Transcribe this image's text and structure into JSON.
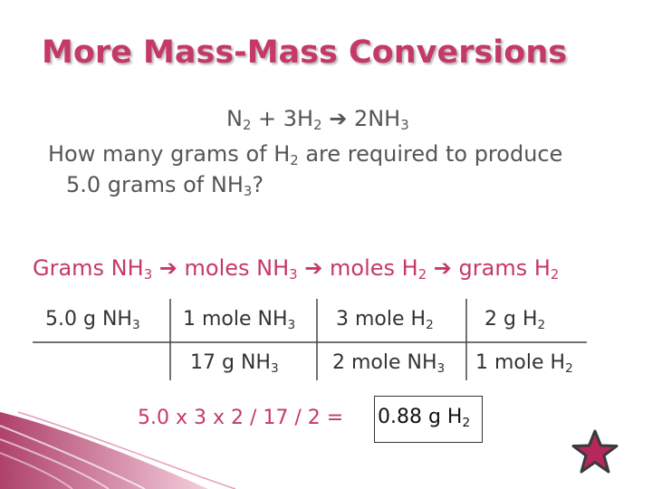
{
  "slide": {
    "title": "More Mass-Mass Conversions",
    "equation": {
      "n": "N",
      "n_sub": "2",
      "plus": " + 3H",
      "h_sub": "2",
      "arrow": "➔",
      "prod": " 2NH",
      "prod_sub": "3"
    },
    "question": {
      "line1_a": "How many grams of H",
      "line1_sub": "2",
      "line1_b": " are required to produce",
      "line2_a": "5.0 grams of NH",
      "line2_sub": "3",
      "line2_b": "?"
    },
    "roadmap": {
      "s1": "Grams NH",
      "s1_sub": "3",
      "a1": " ➔ ",
      "s2": "moles NH",
      "s2_sub": "3",
      "a2": " ➔ ",
      "s3": "moles H",
      "s3_sub": "2",
      "a3": " ➔ ",
      "s4": "grams H",
      "s4_sub": "2"
    },
    "table": {
      "c1": "5.0 g NH",
      "c1_sub": "3",
      "c2": "1 mole NH",
      "c2_sub": "3",
      "c3": "3 mole H",
      "c3_sub": "2",
      "c4": "2 g H",
      "c4_sub": "2",
      "c5": "17 g NH",
      "c5_sub": "3",
      "c6": "2 mole NH",
      "c6_sub": "3",
      "c7": "1 mole H",
      "c7_sub": "2"
    },
    "calculation": "5.0 x 3 x 2 / 17 / 2 =",
    "result": "0.88 g H",
    "result_sub": "2"
  },
  "colors": {
    "title": "#c4396a",
    "accent": "#c4396a",
    "body": "#555555",
    "star": "#b5285b"
  },
  "icons": [
    "star-icon"
  ]
}
